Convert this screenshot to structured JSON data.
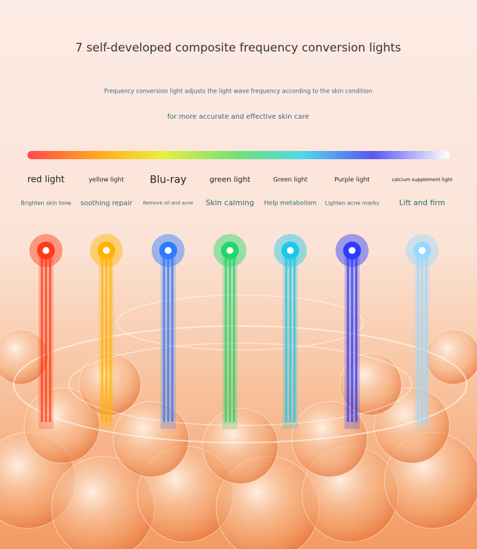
{
  "header": {
    "title": "7 self-developed composite frequency conversion lights",
    "subtitle_lines": [
      "Frequency conversion light adjusts the light wave frequency according to the skin condition",
      "for more accurate and effective skin care"
    ]
  },
  "lights": [
    {
      "name": "red light",
      "effect": "Brighten skin tone",
      "color": "#ff3a1a"
    },
    {
      "name": "yellow light",
      "effect": "soothing repair",
      "color": "#ffb400"
    },
    {
      "name": "Blu-ray",
      "effect": "Remove oil and acne",
      "color": "#2f7bff"
    },
    {
      "name": "green light",
      "effect": "Skin calming",
      "color": "#22d66a"
    },
    {
      "name": "Green light",
      "effect": "Help metabolism",
      "color": "#1ec8e8"
    },
    {
      "name": "Purple light",
      "effect": "Lighten acne marks",
      "color": "#2b3cff"
    },
    {
      "name": "calcium supplement light",
      "effect": "Lift and firm",
      "color": "#9ad8ff"
    }
  ]
}
